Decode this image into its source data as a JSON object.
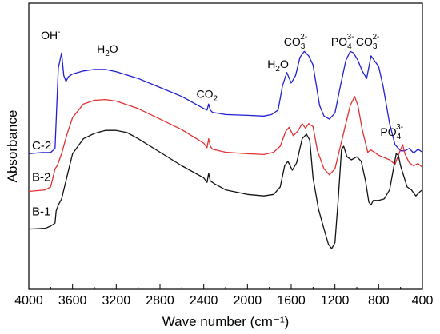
{
  "chart_data": {
    "type": "line",
    "title": "",
    "xlabel": "Wave number (cm⁻¹)",
    "ylabel": "Absorbance",
    "xlim": [
      4000,
      400
    ],
    "x_reversed": true,
    "x_ticks": [
      4000,
      3600,
      3200,
      2800,
      2400,
      2000,
      1600,
      1200,
      800,
      400
    ],
    "y_ticks": [],
    "grid": false,
    "legend": "inline labels at left",
    "series": [
      {
        "name": "C-2",
        "color": "#1f1fd0",
        "points": [
          [
            4000,
            0.8
          ],
          [
            3880,
            0.808
          ],
          [
            3800,
            0.808
          ],
          [
            3760,
            0.835
          ],
          [
            3730,
            1.37
          ],
          [
            3700,
            1.47
          ],
          [
            3680,
            1.32
          ],
          [
            3660,
            1.28
          ],
          [
            3640,
            1.31
          ],
          [
            3600,
            1.33
          ],
          [
            3500,
            1.35
          ],
          [
            3400,
            1.36
          ],
          [
            3300,
            1.36
          ],
          [
            3200,
            1.345
          ],
          [
            3000,
            1.3
          ],
          [
            2800,
            1.24
          ],
          [
            2600,
            1.18
          ],
          [
            2400,
            1.1
          ],
          [
            2370,
            1.09
          ],
          [
            2355,
            1.13
          ],
          [
            2340,
            1.09
          ],
          [
            2320,
            1.075
          ],
          [
            2200,
            1.06
          ],
          [
            2000,
            1.055
          ],
          [
            1850,
            1.05
          ],
          [
            1780,
            1.06
          ],
          [
            1720,
            1.09
          ],
          [
            1680,
            1.25
          ],
          [
            1640,
            1.34
          ],
          [
            1600,
            1.27
          ],
          [
            1560,
            1.32
          ],
          [
            1520,
            1.44
          ],
          [
            1480,
            1.48
          ],
          [
            1440,
            1.45
          ],
          [
            1400,
            1.39
          ],
          [
            1340,
            1.12
          ],
          [
            1300,
            1.05
          ],
          [
            1250,
            1.03
          ],
          [
            1200,
            1.07
          ],
          [
            1150,
            1.25
          ],
          [
            1100,
            1.42
          ],
          [
            1060,
            1.48
          ],
          [
            1030,
            1.47
          ],
          [
            990,
            1.42
          ],
          [
            950,
            1.35
          ],
          [
            910,
            1.3
          ],
          [
            870,
            1.45
          ],
          [
            840,
            1.42
          ],
          [
            800,
            1.38
          ],
          [
            760,
            1.25
          ],
          [
            700,
            1.0
          ],
          [
            650,
            0.86
          ],
          [
            600,
            0.82
          ],
          [
            560,
            0.82
          ],
          [
            520,
            0.835
          ],
          [
            480,
            0.805
          ],
          [
            440,
            0.83
          ],
          [
            400,
            0.81
          ]
        ]
      },
      {
        "name": "B-2",
        "color": "#e03030",
        "points": [
          [
            4000,
            0.55
          ],
          [
            3850,
            0.56
          ],
          [
            3800,
            0.58
          ],
          [
            3780,
            0.64
          ],
          [
            3760,
            0.7
          ],
          [
            3740,
            0.72
          ],
          [
            3700,
            0.8
          ],
          [
            3650,
            0.93
          ],
          [
            3600,
            1.04
          ],
          [
            3500,
            1.13
          ],
          [
            3400,
            1.155
          ],
          [
            3300,
            1.16
          ],
          [
            3200,
            1.15
          ],
          [
            3000,
            1.1
          ],
          [
            2800,
            1.03
          ],
          [
            2600,
            0.96
          ],
          [
            2400,
            0.87
          ],
          [
            2370,
            0.84
          ],
          [
            2355,
            0.9
          ],
          [
            2340,
            0.85
          ],
          [
            2320,
            0.83
          ],
          [
            2200,
            0.81
          ],
          [
            2000,
            0.8
          ],
          [
            1850,
            0.795
          ],
          [
            1760,
            0.81
          ],
          [
            1700,
            0.85
          ],
          [
            1650,
            0.95
          ],
          [
            1620,
            0.975
          ],
          [
            1580,
            0.92
          ],
          [
            1540,
            0.95
          ],
          [
            1500,
            1.0
          ],
          [
            1470,
            0.97
          ],
          [
            1440,
            1.0
          ],
          [
            1400,
            0.98
          ],
          [
            1360,
            0.82
          ],
          [
            1300,
            0.7
          ],
          [
            1250,
            0.66
          ],
          [
            1200,
            0.7
          ],
          [
            1150,
            0.85
          ],
          [
            1100,
            1.0
          ],
          [
            1060,
            1.12
          ],
          [
            1020,
            1.18
          ],
          [
            990,
            1.12
          ],
          [
            950,
            0.96
          ],
          [
            900,
            0.81
          ],
          [
            870,
            0.825
          ],
          [
            840,
            0.81
          ],
          [
            800,
            0.79
          ],
          [
            700,
            0.76
          ],
          [
            650,
            0.73
          ],
          [
            610,
            0.81
          ],
          [
            580,
            0.86
          ],
          [
            560,
            0.8
          ],
          [
            520,
            0.74
          ],
          [
            480,
            0.72
          ],
          [
            440,
            0.735
          ],
          [
            400,
            0.71
          ]
        ]
      },
      {
        "name": "B-1",
        "color": "#111111",
        "points": [
          [
            4000,
            0.3
          ],
          [
            3850,
            0.305
          ],
          [
            3800,
            0.32
          ],
          [
            3760,
            0.34
          ],
          [
            3750,
            0.42
          ],
          [
            3730,
            0.46
          ],
          [
            3700,
            0.5
          ],
          [
            3650,
            0.65
          ],
          [
            3600,
            0.8
          ],
          [
            3500,
            0.9
          ],
          [
            3400,
            0.935
          ],
          [
            3300,
            0.955
          ],
          [
            3200,
            0.955
          ],
          [
            3100,
            0.94
          ],
          [
            3000,
            0.9
          ],
          [
            2800,
            0.81
          ],
          [
            2600,
            0.72
          ],
          [
            2400,
            0.64
          ],
          [
            2370,
            0.61
          ],
          [
            2355,
            0.67
          ],
          [
            2340,
            0.62
          ],
          [
            2300,
            0.6
          ],
          [
            2200,
            0.56
          ],
          [
            2000,
            0.53
          ],
          [
            1850,
            0.52
          ],
          [
            1760,
            0.53
          ],
          [
            1700,
            0.58
          ],
          [
            1660,
            0.72
          ],
          [
            1630,
            0.75
          ],
          [
            1590,
            0.69
          ],
          [
            1550,
            0.74
          ],
          [
            1500,
            0.9
          ],
          [
            1460,
            0.93
          ],
          [
            1430,
            0.89
          ],
          [
            1400,
            0.64
          ],
          [
            1350,
            0.43
          ],
          [
            1300,
            0.3
          ],
          [
            1260,
            0.2
          ],
          [
            1230,
            0.17
          ],
          [
            1200,
            0.21
          ],
          [
            1170,
            0.5
          ],
          [
            1140,
            0.83
          ],
          [
            1120,
            0.85
          ],
          [
            1090,
            0.78
          ],
          [
            1050,
            0.76
          ],
          [
            1000,
            0.78
          ],
          [
            960,
            0.75
          ],
          [
            920,
            0.62
          ],
          [
            890,
            0.48
          ],
          [
            870,
            0.46
          ],
          [
            850,
            0.49
          ],
          [
            800,
            0.49
          ],
          [
            750,
            0.5
          ],
          [
            700,
            0.56
          ],
          [
            660,
            0.72
          ],
          [
            640,
            0.8
          ],
          [
            620,
            0.79
          ],
          [
            600,
            0.72
          ],
          [
            570,
            0.65
          ],
          [
            540,
            0.58
          ],
          [
            500,
            0.56
          ],
          [
            460,
            0.52
          ],
          [
            420,
            0.55
          ],
          [
            400,
            0.56
          ]
        ]
      }
    ],
    "annotations": [
      {
        "base": "OH",
        "sup": "-",
        "sub": "",
        "x": 3800,
        "y": 1.56
      },
      {
        "base": "H",
        "sub": "2",
        "after": "O",
        "sup": "",
        "x": 3280,
        "y": 1.47
      },
      {
        "base": "CO",
        "sub": "2",
        "sup": "",
        "x": 2370,
        "y": 1.17
      },
      {
        "base": "H",
        "sub": "2",
        "after": "O",
        "sup": "",
        "x": 1720,
        "y": 1.37
      },
      {
        "base": "CO",
        "sub": "3",
        "sup": "2-",
        "x": 1560,
        "y": 1.52
      },
      {
        "base": "PO",
        "sub": "4",
        "sup": "3-",
        "x": 1130,
        "y": 1.52
      },
      {
        "base": "CO",
        "sub": "3",
        "sup": "2-",
        "x": 900,
        "y": 1.52
      },
      {
        "base": "PO",
        "sub": "4",
        "sup": "3-",
        "x": 680,
        "y": 0.92
      }
    ],
    "series_labels": [
      {
        "text": "C-2",
        "y": 0.83
      },
      {
        "text": "B-2",
        "y": 0.62
      },
      {
        "text": "B-1",
        "y": 0.39
      }
    ],
    "ylim": [
      -0.1,
      1.8
    ]
  }
}
